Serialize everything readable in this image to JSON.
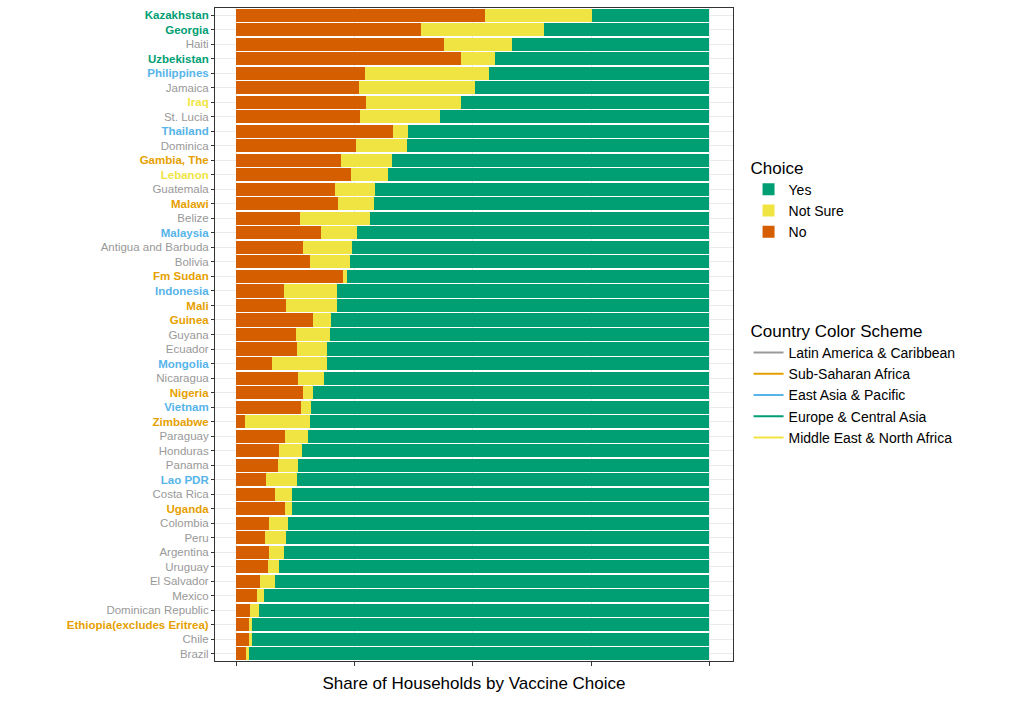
{
  "chart_data": {
    "type": "bar",
    "orientation": "horizontal",
    "stacked": true,
    "x_label": "Share of Households by Vaccine Choice",
    "legend_title": "Choice",
    "legend": "right",
    "grid": true,
    "tick_labels": "y",
    "xlim": [
      -0.045,
      1.05
    ],
    "xticks": [
      0,
      0.25,
      0.5,
      0.75,
      1
    ],
    "categories": [
      "Kazakhstan",
      "Georgia",
      "Haiti",
      "Uzbekistan",
      "Philippines",
      "Jamaica",
      "Iraq",
      "St. Lucia",
      "Thailand",
      "Dominica",
      "Gambia, The",
      "Lebanon",
      "Guatemala",
      "Malawi",
      "Belize",
      "Malaysia",
      "Antigua and Barbuda",
      "Bolivia",
      "Fm Sudan",
      "Indonesia",
      "Mali",
      "Guinea",
      "Guyana",
      "Ecuador",
      "Mongolia",
      "Nicaragua",
      "Nigeria",
      "Vietnam",
      "Zimbabwe",
      "Paraguay",
      "Honduras",
      "Panama",
      "Lao PDR",
      "Costa Rica",
      "Uganda",
      "Colombia",
      "Peru",
      "Argentina",
      "Uruguay",
      "El Salvador",
      "Mexico",
      "Dominican Republic",
      "Ethiopia(excludes Eritrea)",
      "Chile",
      "Brazil"
    ],
    "category_groups": [
      "Europe & Central Asia",
      "Europe & Central Asia",
      "Latin America & Caribbean",
      "Europe & Central Asia",
      "East Asia & Pacific",
      "Latin America & Caribbean",
      "Middle East & North Africa",
      "Latin America & Caribbean",
      "East Asia & Pacific",
      "Latin America & Caribbean",
      "Sub-Saharan Africa",
      "Middle East & North Africa",
      "Latin America & Caribbean",
      "Sub-Saharan Africa",
      "Latin America & Caribbean",
      "East Asia & Pacific",
      "Latin America & Caribbean",
      "Latin America & Caribbean",
      "Sub-Saharan Africa",
      "East Asia & Pacific",
      "Sub-Saharan Africa",
      "Sub-Saharan Africa",
      "Latin America & Caribbean",
      "Latin America & Caribbean",
      "East Asia & Pacific",
      "Latin America & Caribbean",
      "Sub-Saharan Africa",
      "East Asia & Pacific",
      "Sub-Saharan Africa",
      "Latin America & Caribbean",
      "Latin America & Caribbean",
      "Latin America & Caribbean",
      "East Asia & Pacific",
      "Latin America & Caribbean",
      "Sub-Saharan Africa",
      "Latin America & Caribbean",
      "Latin America & Caribbean",
      "Latin America & Caribbean",
      "Latin America & Caribbean",
      "Latin America & Caribbean",
      "Latin America & Caribbean",
      "Latin America & Caribbean",
      "Sub-Saharan Africa",
      "Latin America & Caribbean",
      "Latin America & Caribbean"
    ],
    "group_legend_title": "Country Color Scheme",
    "groups": [
      {
        "name": "Latin America & Caribbean",
        "color": "#999999"
      },
      {
        "name": "Sub-Saharan Africa",
        "color": "#E69F00"
      },
      {
        "name": "East Asia & Pacific",
        "color": "#56B4E9"
      },
      {
        "name": "Europe & Central Asia",
        "color": "#009E73"
      },
      {
        "name": "Middle East & North Africa",
        "color": "#F0E442"
      }
    ],
    "series": [
      {
        "name": "No",
        "color": "#D55E00",
        "values": [
          0.526,
          0.391,
          0.44,
          0.474,
          0.273,
          0.26,
          0.275,
          0.262,
          0.332,
          0.252,
          0.222,
          0.243,
          0.209,
          0.216,
          0.135,
          0.18,
          0.14,
          0.156,
          0.226,
          0.101,
          0.106,
          0.163,
          0.127,
          0.129,
          0.076,
          0.131,
          0.14,
          0.137,
          0.019,
          0.104,
          0.091,
          0.089,
          0.063,
          0.082,
          0.104,
          0.07,
          0.061,
          0.07,
          0.068,
          0.051,
          0.044,
          0.03,
          0.027,
          0.027,
          0.021
        ]
      },
      {
        "name": "Not Sure",
        "color": "#F0E442",
        "values": [
          0.226,
          0.26,
          0.142,
          0.072,
          0.262,
          0.245,
          0.199,
          0.169,
          0.032,
          0.108,
          0.108,
          0.078,
          0.085,
          0.076,
          0.148,
          0.076,
          0.104,
          0.085,
          0.008,
          0.112,
          0.106,
          0.038,
          0.072,
          0.063,
          0.116,
          0.055,
          0.023,
          0.021,
          0.137,
          0.047,
          0.047,
          0.042,
          0.066,
          0.036,
          0.013,
          0.04,
          0.044,
          0.03,
          0.023,
          0.03,
          0.015,
          0.019,
          0.006,
          0.006,
          0.006
        ]
      },
      {
        "name": "Yes",
        "color": "#009E73",
        "values": [
          0.248,
          0.349,
          0.418,
          0.454,
          0.465,
          0.495,
          0.526,
          0.569,
          0.636,
          0.64,
          0.67,
          0.679,
          0.706,
          0.708,
          0.717,
          0.744,
          0.756,
          0.759,
          0.766,
          0.787,
          0.788,
          0.799,
          0.801,
          0.808,
          0.808,
          0.814,
          0.837,
          0.842,
          0.844,
          0.849,
          0.862,
          0.869,
          0.871,
          0.882,
          0.883,
          0.89,
          0.895,
          0.9,
          0.909,
          0.919,
          0.941,
          0.951,
          0.967,
          0.967,
          0.973
        ]
      }
    ]
  }
}
